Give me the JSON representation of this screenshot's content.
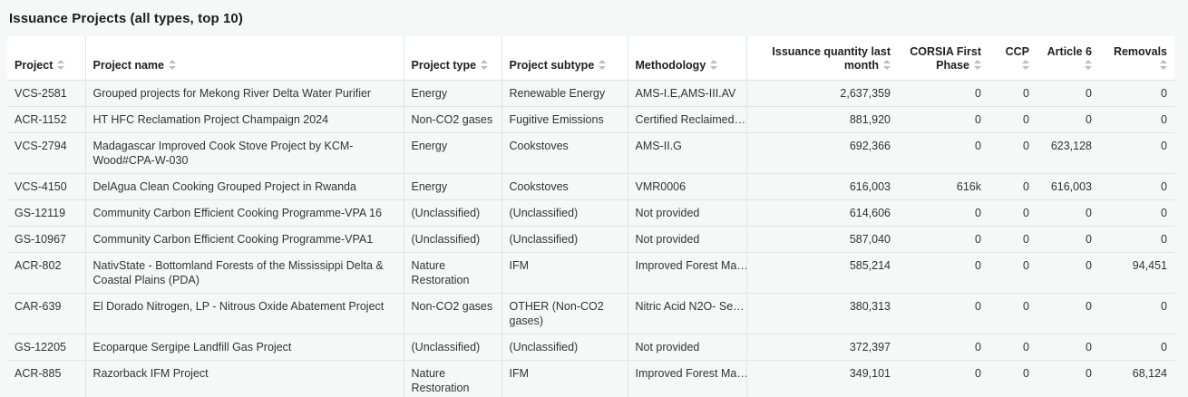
{
  "title": "Issuance Projects (all types, top 10)",
  "colors": {
    "page_background": "#f6f7f7",
    "header_background": "#ffffff",
    "border": "#e2e4e4",
    "text": "#333333",
    "sort_icon": "#b9bdbf"
  },
  "table": {
    "columns": [
      {
        "label": "Project",
        "align": "left"
      },
      {
        "label": "Project name",
        "align": "left"
      },
      {
        "label": "Project type",
        "align": "left"
      },
      {
        "label": "Project subtype",
        "align": "left"
      },
      {
        "label": "Methodology",
        "align": "left"
      },
      {
        "label": "Issuance quantity last month",
        "align": "right"
      },
      {
        "label": "CORSIA First Phase",
        "align": "right"
      },
      {
        "label": "CCP",
        "align": "right"
      },
      {
        "label": "Article 6",
        "align": "right"
      },
      {
        "label": "Removals",
        "align": "right"
      }
    ],
    "rows": [
      [
        "VCS-2581",
        "Grouped projects for Mekong River Delta Water Purifier",
        "Energy",
        "Renewable Energy",
        "AMS-I.E,AMS-III.AV",
        "2,637,359",
        "0",
        "0",
        "0",
        "0"
      ],
      [
        "ACR-1152",
        "HT HFC Reclamation Project Champaign 2024",
        "Non-CO2 gases",
        "Fugitive Emissions",
        "Certified Reclaimed…",
        "881,920",
        "0",
        "0",
        "0",
        "0"
      ],
      [
        "VCS-2794",
        "Madagascar Improved Cook Stove Project by KCM-Wood#CPA-W-030",
        "Energy",
        "Cookstoves",
        "AMS-II.G",
        "692,366",
        "0",
        "0",
        "623,128",
        "0"
      ],
      [
        "VCS-4150",
        "DelAgua Clean Cooking Grouped Project in Rwanda",
        "Energy",
        "Cookstoves",
        "VMR0006",
        "616,003",
        "616k",
        "0",
        "616,003",
        "0"
      ],
      [
        "GS-12119",
        "Community Carbon Efficient Cooking Programme-VPA 16",
        "(Unclassified)",
        "(Unclassified)",
        "Not provided",
        "614,606",
        "0",
        "0",
        "0",
        "0"
      ],
      [
        "GS-10967",
        "Community Carbon Efficient Cooking Programme-VPA1",
        "(Unclassified)",
        "(Unclassified)",
        "Not provided",
        "587,040",
        "0",
        "0",
        "0",
        "0"
      ],
      [
        "ACR-802",
        "NativState - Bottomland Forests of the Mississippi Delta & Coastal Plains (PDA)",
        "Nature Restoration",
        "IFM",
        "Improved Forest Ma…",
        "585,214",
        "0",
        "0",
        "0",
        "94,451"
      ],
      [
        "CAR-639",
        "El Dorado Nitrogen, LP - Nitrous Oxide Abatement Project",
        "Non-CO2 gases",
        "OTHER (Non-CO2 gases)",
        "Nitric Acid N2O- Se…",
        "380,313",
        "0",
        "0",
        "0",
        "0"
      ],
      [
        "GS-12205",
        "Ecoparque Sergipe Landfill Gas Project",
        "(Unclassified)",
        "(Unclassified)",
        "Not provided",
        "372,397",
        "0",
        "0",
        "0",
        "0"
      ],
      [
        "ACR-885",
        "Razorback IFM Project",
        "Nature Restoration",
        "IFM",
        "Improved Forest Ma…",
        "349,101",
        "0",
        "0",
        "0",
        "68,124"
      ]
    ]
  }
}
